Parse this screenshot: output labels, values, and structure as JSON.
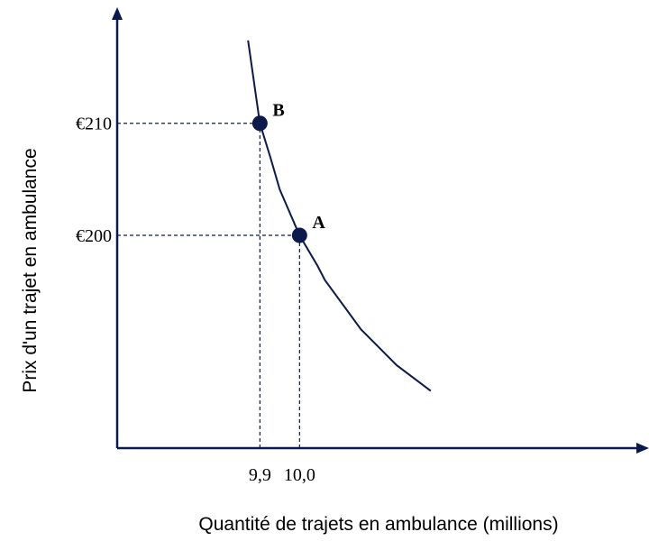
{
  "chart_data": {
    "type": "scatter",
    "x_label": "Quantité de trajets en ambulance (millions)",
    "y_label": "Prix d'un trajet en ambulance",
    "xlim": [
      9.54,
      10.87
    ],
    "ylim": [
      181,
      219.8
    ],
    "xticks": [
      {
        "value": 9.9,
        "label": "9,9"
      },
      {
        "value": 10.0,
        "label": "10,0"
      }
    ],
    "yticks": [
      {
        "value": 210,
        "label": "€210"
      },
      {
        "value": 200,
        "label": "€200"
      }
    ],
    "color": "#0b1a4a",
    "points": {
      "labels": [
        "B",
        "A"
      ],
      "x": [
        9.9,
        10.0
      ],
      "y": [
        210,
        200
      ]
    },
    "curve": {
      "x": [
        9.87,
        9.9,
        9.927,
        9.95,
        10.0,
        10.045,
        10.064,
        10.155,
        10.245,
        10.331
      ],
      "y": [
        217.4,
        210,
        206.9,
        204.1,
        200,
        197.3,
        196.0,
        191.6,
        188.4,
        186.1
      ]
    }
  }
}
